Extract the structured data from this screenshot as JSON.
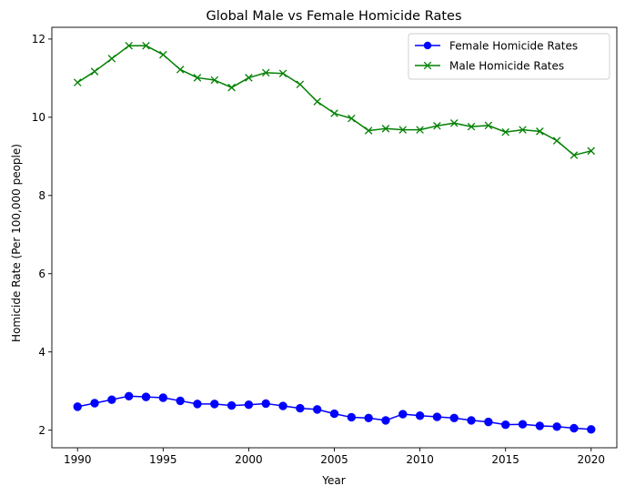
{
  "chart_data": {
    "type": "line",
    "title": "Global Male vs Female Homicide Rates",
    "xlabel": "Year",
    "ylabel": "Homicide Rate (Per 100,000 people)",
    "x": [
      1990,
      1991,
      1992,
      1993,
      1994,
      1995,
      1996,
      1997,
      1998,
      1999,
      2000,
      2001,
      2002,
      2003,
      2004,
      2005,
      2006,
      2007,
      2008,
      2009,
      2010,
      2011,
      2012,
      2013,
      2014,
      2015,
      2016,
      2017,
      2018,
      2019,
      2020
    ],
    "xlim": [
      1988.5,
      2021.5
    ],
    "ylim": [
      1.55,
      12.3
    ],
    "xticks": [
      1990,
      1995,
      2000,
      2005,
      2010,
      2015,
      2020
    ],
    "yticks": [
      2,
      4,
      6,
      8,
      10,
      12
    ],
    "grid": false,
    "legend_position": "upper right",
    "series": [
      {
        "name": "Female Homicide Rates",
        "color": "#0000ff",
        "marker": "circle",
        "values": [
          2.6,
          2.69,
          2.78,
          2.87,
          2.85,
          2.83,
          2.75,
          2.67,
          2.67,
          2.63,
          2.65,
          2.68,
          2.62,
          2.56,
          2.53,
          2.42,
          2.33,
          2.31,
          2.25,
          2.41,
          2.37,
          2.34,
          2.31,
          2.25,
          2.21,
          2.14,
          2.15,
          2.11,
          2.09,
          2.05,
          2.02
        ]
      },
      {
        "name": "Male Homicide Rates",
        "color": "#008000",
        "marker": "x",
        "values": [
          10.89,
          11.17,
          11.5,
          11.83,
          11.83,
          11.6,
          11.22,
          11.01,
          10.95,
          10.76,
          11.01,
          11.14,
          11.12,
          10.84,
          10.4,
          10.1,
          9.97,
          9.66,
          9.71,
          9.68,
          9.68,
          9.78,
          9.85,
          9.76,
          9.79,
          9.62,
          9.68,
          9.64,
          9.4,
          9.03,
          9.14
        ]
      }
    ]
  }
}
